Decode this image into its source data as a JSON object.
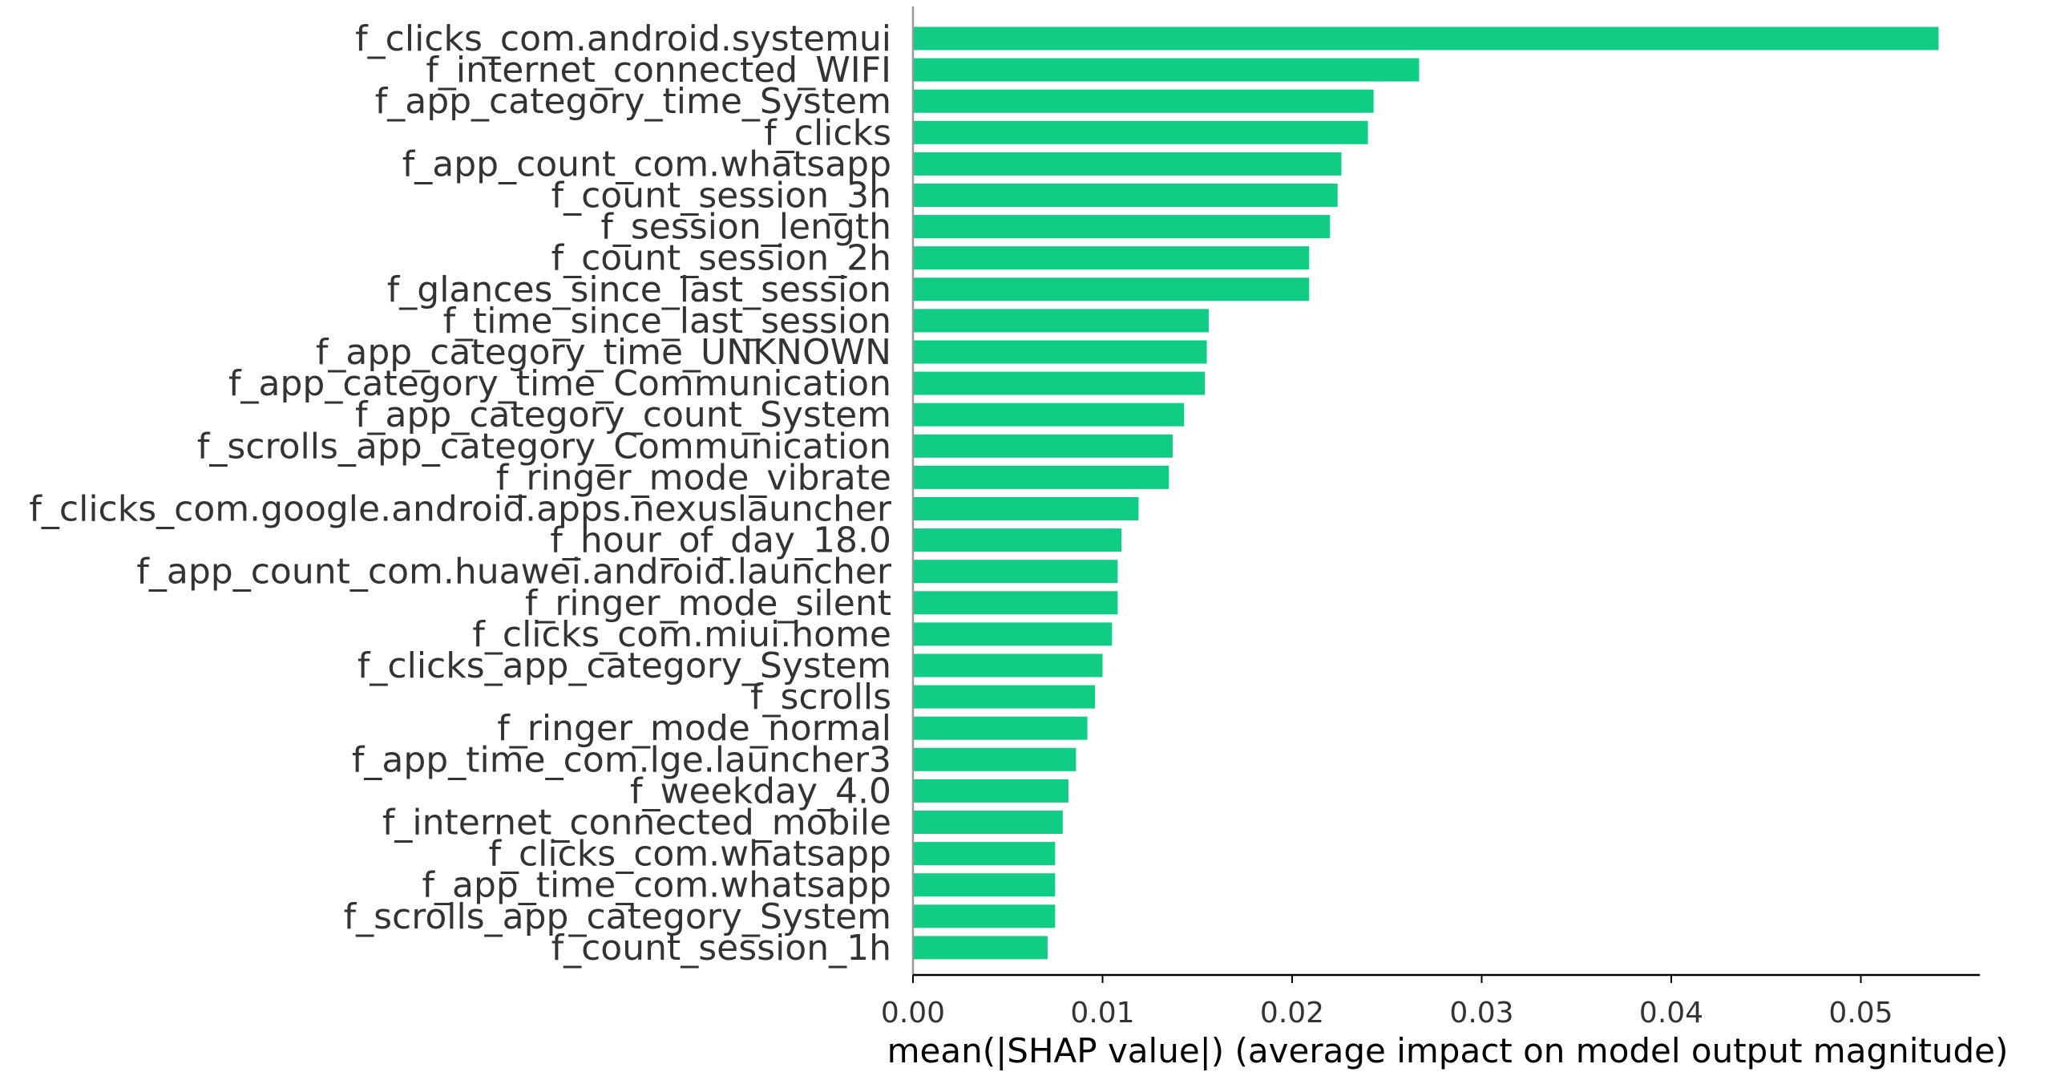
{
  "chart_data": {
    "type": "bar",
    "orientation": "horizontal",
    "title": "",
    "xlabel": "mean(|SHAP value|) (average impact on model output magnitude)",
    "ylabel": "",
    "xlim": [
      0,
      0.0566
    ],
    "xticks": [
      0.0,
      0.01,
      0.02,
      0.03,
      0.04,
      0.05
    ],
    "xtick_labels": [
      "0.00",
      "0.01",
      "0.02",
      "0.03",
      "0.04",
      "0.05"
    ],
    "bar_color": "#10CC85",
    "grid": false,
    "categories": [
      "f_clicks_com.android.systemui",
      "f_internet_connected_WIFI",
      "f_app_category_time_System",
      "f_clicks",
      "f_app_count_com.whatsapp",
      "f_count_session_3h",
      "f_session_length",
      "f_count_session_2h",
      "f_glances_since_last_session",
      "f_time_since_last_session",
      "f_app_category_time_UNKNOWN",
      "f_app_category_time_Communication",
      "f_app_category_count_System",
      "f_scrolls_app_category_Communication",
      "f_ringer_mode_vibrate",
      "f_clicks_com.google.android.apps.nexuslauncher",
      "f_hour_of_day_18.0",
      "f_app_count_com.huawei.android.launcher",
      "f_ringer_mode_silent",
      "f_clicks_com.miui.home",
      "f_clicks_app_category_System",
      "f_scrolls",
      "f_ringer_mode_normal",
      "f_app_time_com.lge.launcher3",
      "f_weekday_4.0",
      "f_internet_connected_mobile",
      "f_clicks_com.whatsapp",
      "f_app_time_com.whatsapp",
      "f_scrolls_app_category_System",
      "f_count_session_1h"
    ],
    "values": [
      0.0541,
      0.0267,
      0.0243,
      0.024,
      0.0226,
      0.0224,
      0.022,
      0.0209,
      0.0209,
      0.0156,
      0.0155,
      0.0154,
      0.0143,
      0.0137,
      0.0135,
      0.0119,
      0.011,
      0.0108,
      0.0108,
      0.0105,
      0.01,
      0.0096,
      0.0092,
      0.0086,
      0.0082,
      0.0079,
      0.0075,
      0.0075,
      0.0075,
      0.0071
    ]
  }
}
